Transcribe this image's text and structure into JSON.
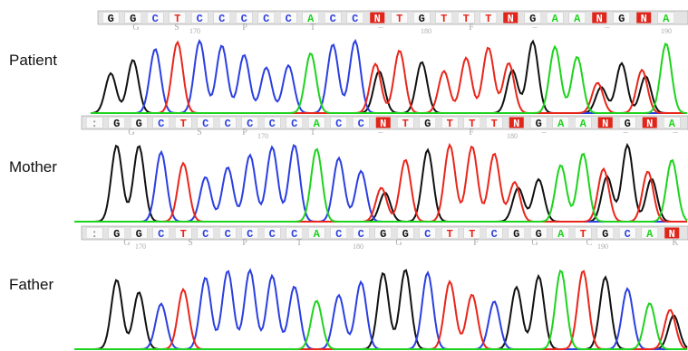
{
  "panels": [
    {
      "label": "Patient",
      "bases": [
        "G",
        "G",
        "C",
        "T",
        "C",
        "C",
        "C",
        "C",
        "C",
        "A",
        "C",
        "C",
        "N",
        "T",
        "G",
        "T",
        "T",
        "T",
        "N",
        "G",
        "A",
        "A",
        "N",
        "G",
        "N",
        "A"
      ],
      "annotations": [
        "G",
        "S",
        "170",
        "P",
        "T",
        "–",
        "180",
        "F",
        "–",
        "–",
        "190"
      ]
    },
    {
      "label": "Mother",
      "bases": [
        ":",
        "G",
        "G",
        "C",
        "T",
        "C",
        "C",
        "C",
        "C",
        "C",
        "A",
        "C",
        "C",
        "N",
        "T",
        "G",
        "T",
        "T",
        "T",
        "N",
        "G",
        "A",
        "A",
        "N",
        "G",
        "N",
        "A"
      ],
      "annotations": [
        "G",
        "S",
        "P",
        "170",
        "T",
        "–",
        "F",
        "180",
        "–",
        "–",
        "–"
      ]
    },
    {
      "label": "Father",
      "bases": [
        ":",
        "G",
        "G",
        "C",
        "T",
        "C",
        "C",
        "C",
        "C",
        "C",
        "A",
        "C",
        "C",
        "G",
        "G",
        "C",
        "T",
        "T",
        "C",
        "G",
        "G",
        "A",
        "T",
        "G",
        "C",
        "A",
        "N"
      ],
      "annotations": [
        "G",
        "170",
        "S",
        "P",
        "T",
        "180",
        "G",
        "F",
        "G",
        "C",
        "190",
        "K"
      ]
    }
  ]
}
